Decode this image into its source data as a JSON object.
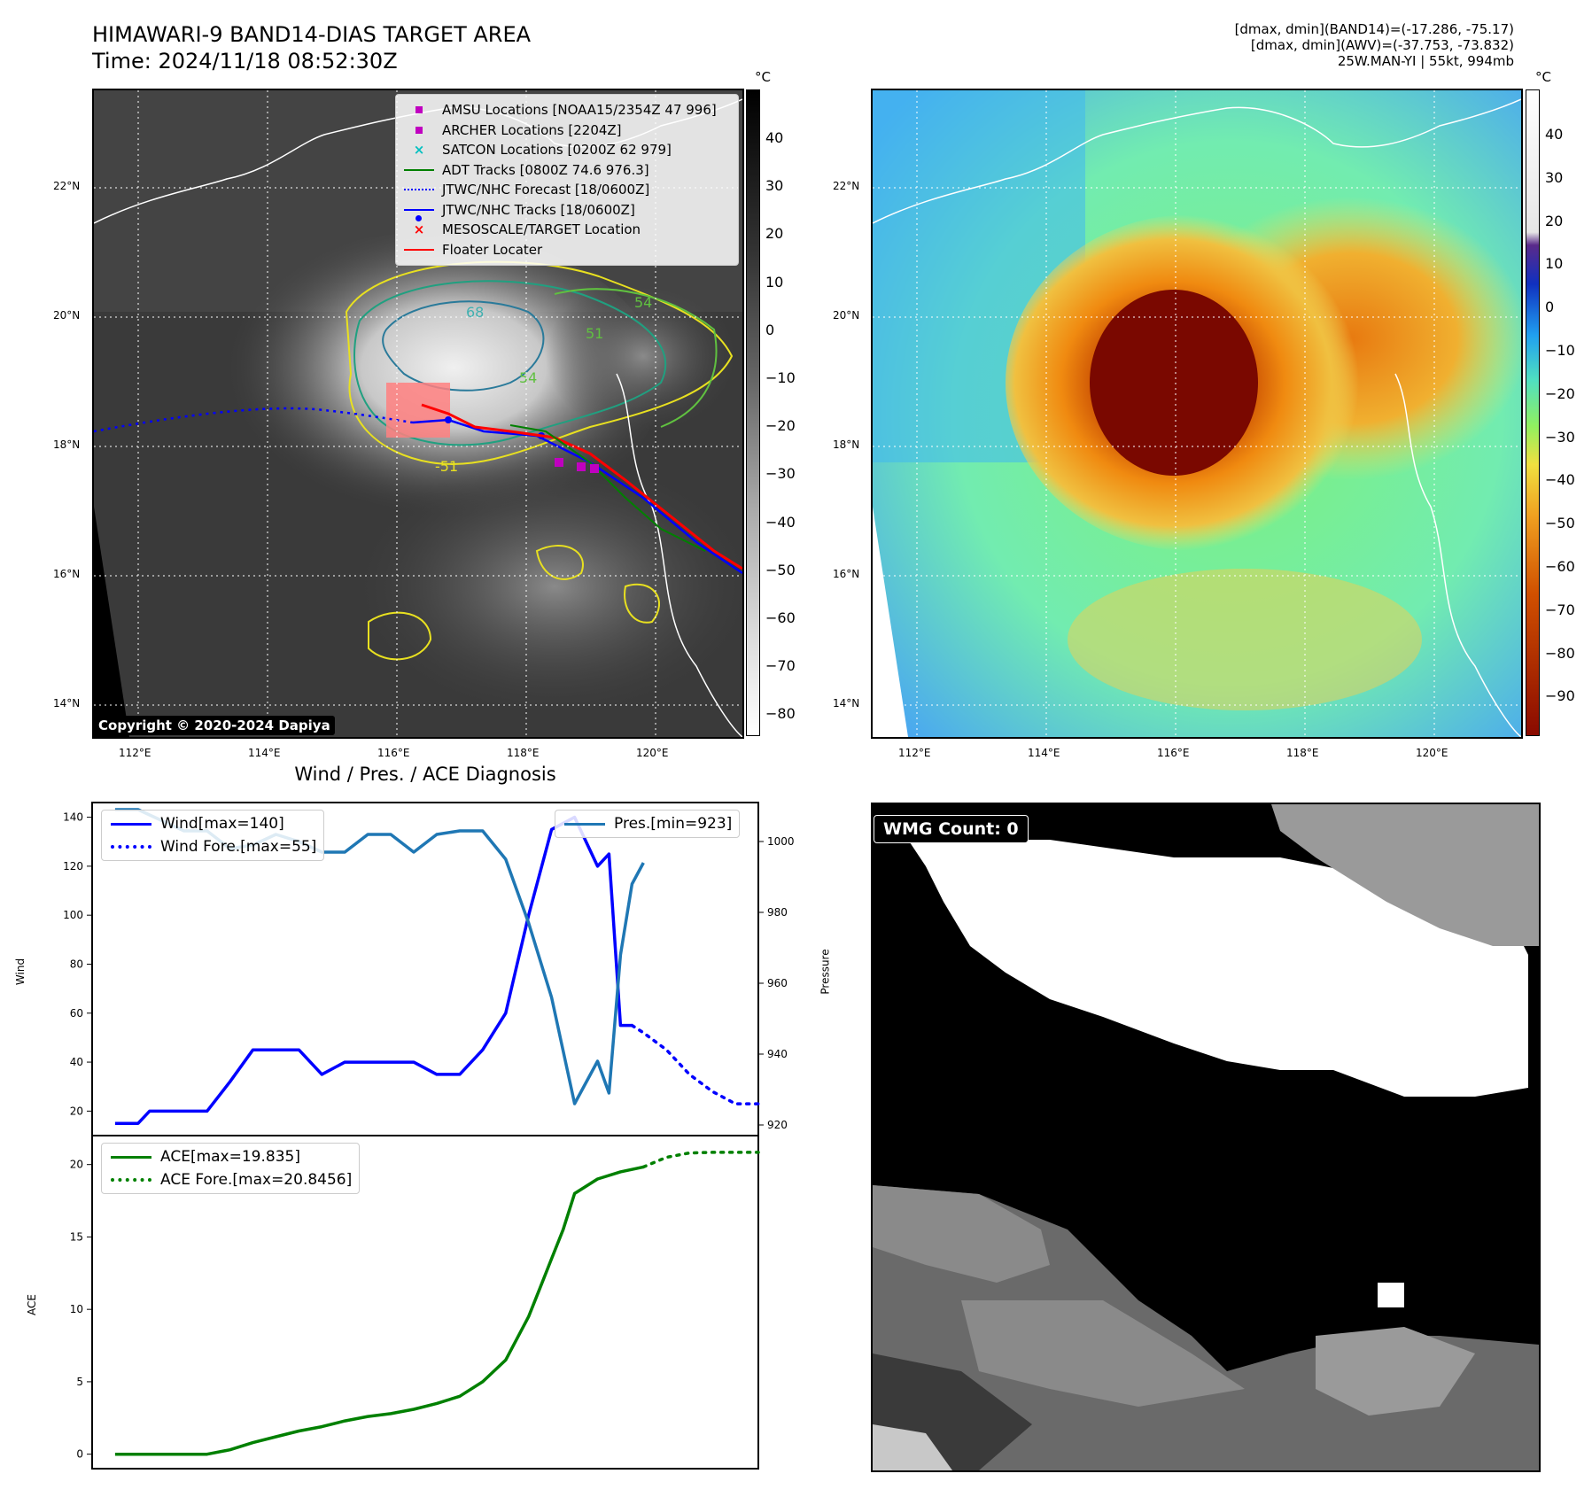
{
  "header": {
    "title_line1": "HIMAWARI-9 BAND14-DIAS TARGET AREA",
    "title_line2": "Time: 2024/11/18 08:52:30Z",
    "info_line1": "[dmax, dmin](BAND14)=(-17.286, -75.17)",
    "info_line2": "[dmax, dmin](AWV)=(-37.753, -73.832)",
    "info_line3": "25W.MAN-YI | 55kt, 994mb"
  },
  "map": {
    "lat_labels": [
      "22°N",
      "20°N",
      "18°N",
      "16°N",
      "14°N"
    ],
    "lon_labels": [
      "112°E",
      "114°E",
      "116°E",
      "118°E",
      "120°E"
    ],
    "copyright": "Copyright © 2020-2024 Dapiya",
    "contour_labels": [
      "68",
      "54",
      "54",
      "51",
      "-51"
    ]
  },
  "legend_map": {
    "items": [
      {
        "label": "AMSU Locations [NOAA15/2354Z 47 996]",
        "kind": "square",
        "color": "#c000c0"
      },
      {
        "label": "ARCHER Locations [2204Z]",
        "kind": "square",
        "color": "#c000c0"
      },
      {
        "label": "SATCON Locations [0200Z 62 979]",
        "kind": "x",
        "color": "#00c0c0"
      },
      {
        "label": "ADT Tracks [0800Z 74.6 976.3]",
        "kind": "line",
        "color": "#008000"
      },
      {
        "label": "JTWC/NHC Forecast [18/0600Z]",
        "kind": "dotted",
        "color": "#0000ff"
      },
      {
        "label": "JTWC/NHC Tracks [18/0600Z]",
        "kind": "linedot",
        "color": "#0000ff"
      },
      {
        "label": "MESOSCALE/TARGET Location",
        "kind": "x",
        "color": "#ff0000"
      },
      {
        "label": "Floater Locater",
        "kind": "line",
        "color": "#ff0000"
      }
    ]
  },
  "colorbars": {
    "unit": "°C",
    "left_ticks": [
      "40",
      "30",
      "20",
      "10",
      "0",
      "−10",
      "−20",
      "−30",
      "−40",
      "−50",
      "−60",
      "−70",
      "−80"
    ],
    "right_ticks": [
      "40",
      "30",
      "20",
      "10",
      "0",
      "−10",
      "−20",
      "−30",
      "−40",
      "−50",
      "−60",
      "−70",
      "−80",
      "−90"
    ]
  },
  "wmg": {
    "label": "WMG Count: 0"
  },
  "chart_data": [
    {
      "type": "line",
      "title": "Wind / Pres. / ACE Diagnosis",
      "ylabel": "Wind",
      "ylabel2": "Pressure",
      "ylim": [
        10,
        146
      ],
      "ylim2": [
        917,
        1011
      ],
      "yticks": [
        20,
        40,
        60,
        80,
        100,
        120,
        140
      ],
      "yticks2": [
        920,
        940,
        960,
        980,
        1000
      ],
      "xlim": [
        -1,
        28
      ],
      "series": [
        {
          "name": "Wind[max=140]",
          "axis": "left",
          "style": "solid",
          "color": "#0000ff",
          "x": [
            0,
            1,
            1.5,
            2,
            3,
            4,
            5,
            6,
            7,
            7.5,
            8,
            9,
            10,
            10.5,
            11,
            12,
            13,
            14,
            15,
            16,
            17,
            17.5,
            18,
            19,
            20,
            21,
            21.5,
            22,
            22.5
          ],
          "values": [
            15,
            15,
            20,
            20,
            20,
            20,
            32,
            45,
            45,
            45,
            45,
            35,
            40,
            40,
            40,
            40,
            40,
            35,
            35,
            45,
            60,
            80,
            100,
            135,
            140,
            120,
            125,
            55,
            55
          ]
        },
        {
          "name": "Wind Fore.[max=55]",
          "axis": "left",
          "style": "dotted",
          "color": "#0000ff",
          "x": [
            22.5,
            23,
            24,
            25,
            26,
            27,
            28
          ],
          "values": [
            55,
            52,
            45,
            35,
            28,
            23,
            23
          ]
        },
        {
          "name": "Pres.[min=923]",
          "axis": "right",
          "style": "solid",
          "color": "#1f77b4",
          "x": [
            0,
            1,
            2,
            3,
            4,
            5,
            6,
            7,
            8,
            9,
            10,
            11,
            12,
            13,
            14,
            15,
            16,
            17,
            18,
            19,
            20,
            21,
            21.5,
            22,
            22.5,
            23
          ],
          "values": [
            1009,
            1009,
            1006,
            1003,
            1003,
            998,
            999,
            1002,
            1000,
            997,
            997,
            1002,
            1002,
            997,
            1002,
            1003,
            1003,
            995,
            977,
            956,
            926,
            938,
            929,
            968,
            988,
            994
          ]
        }
      ]
    },
    {
      "type": "line",
      "ylabel": "ACE",
      "ylim": [
        -1,
        22
      ],
      "yticks": [
        0,
        5,
        10,
        15,
        20
      ],
      "xlim": [
        -1,
        28
      ],
      "series": [
        {
          "name": "ACE[max=19.835]",
          "style": "solid",
          "color": "#008000",
          "x": [
            0,
            2,
            4,
            5,
            6,
            7,
            8,
            9,
            10,
            11,
            12,
            13,
            14,
            15,
            16,
            17,
            18,
            18.5,
            19,
            19.5,
            20,
            21,
            22,
            23
          ],
          "values": [
            0,
            0,
            0,
            0.3,
            0.8,
            1.2,
            1.6,
            1.9,
            2.3,
            2.6,
            2.8,
            3.1,
            3.5,
            4.0,
            5.0,
            6.5,
            9.5,
            11.5,
            13.5,
            15.5,
            18.0,
            19.0,
            19.5,
            19.835
          ]
        },
        {
          "name": "ACE Fore.[max=20.8456]",
          "style": "dotted",
          "color": "#008000",
          "x": [
            23,
            24,
            25,
            26,
            27,
            28
          ],
          "values": [
            19.835,
            20.5,
            20.8,
            20.8456,
            20.8456,
            20.8456
          ]
        }
      ]
    }
  ]
}
